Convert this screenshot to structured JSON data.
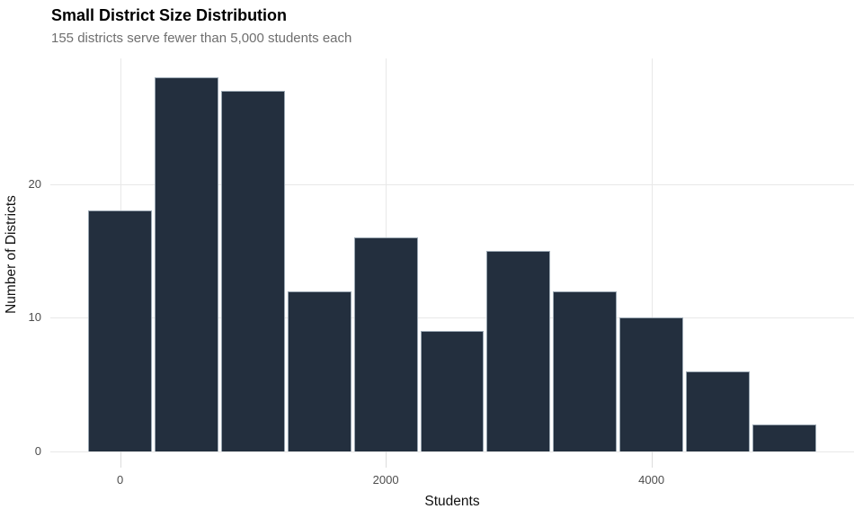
{
  "header": {
    "title": "Small District Size Distribution",
    "subtitle": "155 districts serve fewer than 5,000 students each"
  },
  "chart_data": {
    "type": "bar",
    "subtype": "histogram",
    "title": "Small District Size Distribution",
    "subtitle": "155 districts serve fewer than 5,000 students each",
    "xlabel": "Students",
    "ylabel": "Number of Districts",
    "bin_width": 500,
    "bin_centers": [
      0,
      500,
      1000,
      1500,
      2000,
      2500,
      3000,
      3500,
      4000,
      4500,
      5000
    ],
    "values": [
      18,
      28,
      27,
      12,
      16,
      9,
      15,
      12,
      10,
      6,
      2
    ],
    "total": 155,
    "x_ticks": [
      0,
      2000,
      4000
    ],
    "x_tick_labels": [
      "0",
      "2000",
      "4000"
    ],
    "y_ticks": [
      0,
      10,
      20
    ],
    "y_tick_labels": [
      "0",
      "10",
      "20"
    ],
    "x_domain": [
      -525,
      5525
    ],
    "y_domain": [
      0,
      29.4
    ],
    "grid": "major-only",
    "legend": "none",
    "colors": {
      "bar_fill": "#232f3e",
      "bar_edge": "#9aa7b2",
      "gridline": "#e8e8e8",
      "tick_mark": "#dcdcdc",
      "tick_text": "#4d4d4d",
      "axis_title_text": "#111111",
      "title_text": "#000000",
      "subtitle_text": "#6f6f6f",
      "background": "#ffffff"
    }
  }
}
